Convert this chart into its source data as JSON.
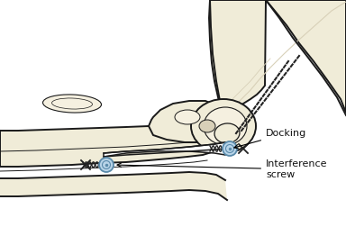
{
  "bg_color": "#ffffff",
  "bone_fill": "#f0ecd8",
  "bone_fill_light": "#f5f0e0",
  "bone_outline": "#1a1a1a",
  "bone_detail": "#d8d0b8",
  "screw_fill": "#b8d4e8",
  "screw_edge": "#5a8aaa",
  "ligament_fill": "#ffffff",
  "ligament_edge": "#222222",
  "suture_color": "#222222",
  "label_docking": "Docking",
  "label_screw": "Interference\nscrew",
  "label_fs": 8,
  "fig_w": 3.84,
  "fig_h": 2.62,
  "dpi": 100
}
